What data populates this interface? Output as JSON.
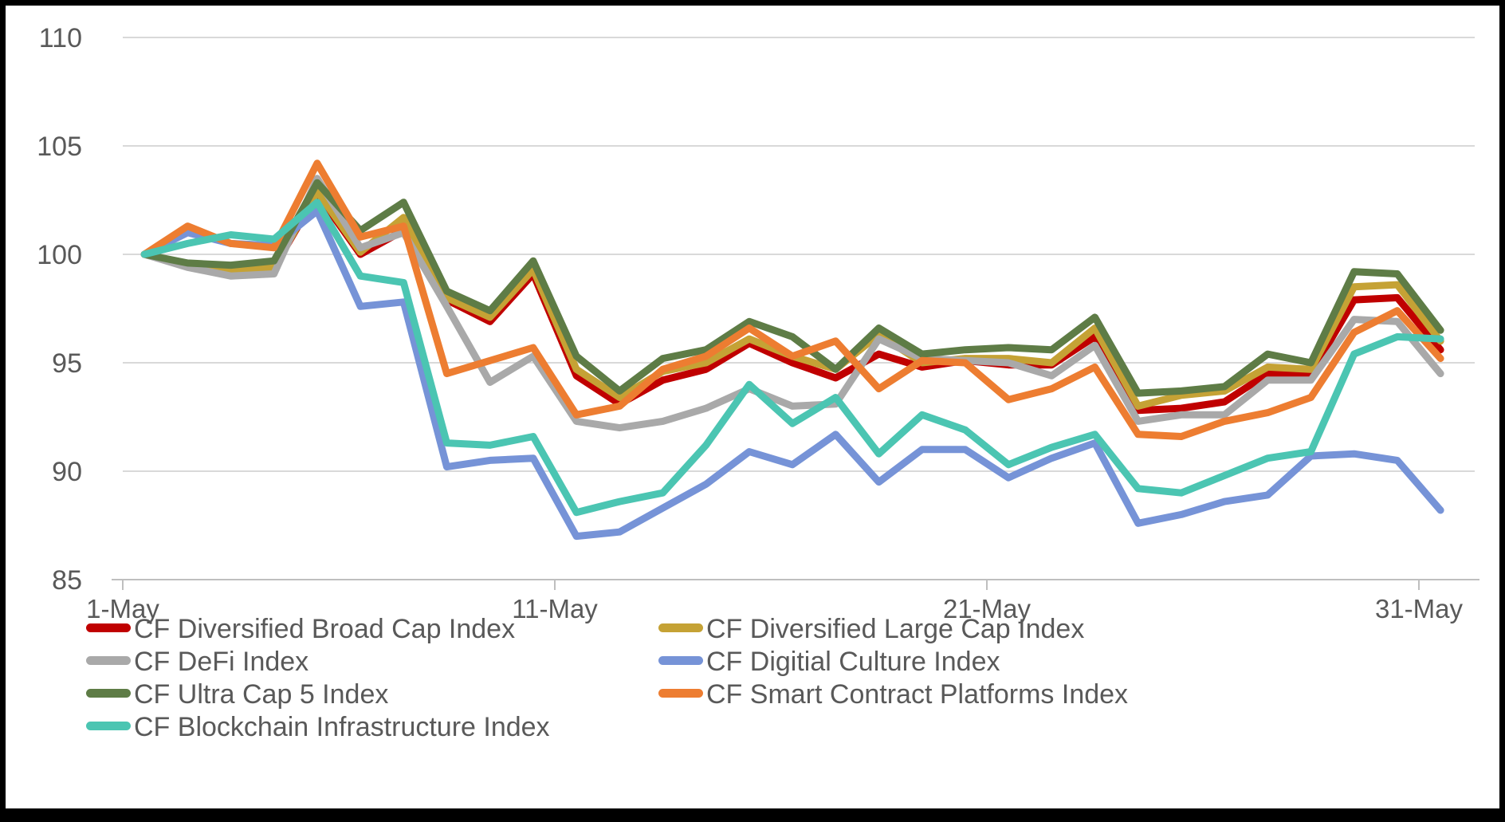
{
  "chart_data": {
    "type": "line",
    "title": "",
    "xlabel": "",
    "ylabel": "",
    "ylim": [
      85,
      110
    ],
    "grid": true,
    "legend_position": "bottom",
    "y_ticks": [
      110,
      105,
      100,
      95,
      90,
      85
    ],
    "x_days": [
      1,
      2,
      3,
      4,
      5,
      6,
      7,
      8,
      9,
      10,
      11,
      12,
      13,
      14,
      15,
      16,
      17,
      18,
      19,
      20,
      21,
      22,
      23,
      24,
      25,
      26,
      27,
      28,
      29,
      30,
      31
    ],
    "x_tick_labels": [
      "1-May",
      "11-May",
      "21-May",
      "31-May"
    ],
    "x_tick_days": [
      1,
      11,
      21,
      31
    ],
    "series": [
      {
        "name": "CF Diversified Broad Cap Index",
        "color": "#C00000",
        "values": [
          100,
          99.5,
          99.3,
          99.4,
          102.8,
          100.0,
          101.1,
          97.9,
          96.9,
          99.1,
          94.4,
          93.1,
          94.2,
          94.7,
          95.9,
          95.0,
          94.3,
          95.4,
          94.8,
          95.1,
          94.9,
          94.9,
          96.2,
          92.8,
          92.9,
          93.2,
          94.5,
          94.5,
          97.9,
          98.0,
          95.6
        ]
      },
      {
        "name": "CF Diversified Large Cap Index",
        "color": "#C5A235",
        "values": [
          100,
          99.5,
          99.3,
          99.4,
          102.9,
          100.1,
          101.7,
          98.0,
          97.1,
          99.3,
          94.7,
          93.4,
          94.6,
          95.0,
          96.1,
          95.3,
          94.7,
          96.3,
          95.0,
          95.2,
          95.2,
          95.0,
          96.6,
          93.0,
          93.5,
          93.7,
          94.8,
          94.7,
          98.5,
          98.6,
          96.0
        ]
      },
      {
        "name": "CF DeFi Index",
        "color": "#A9A9A9",
        "values": [
          100,
          99.4,
          99.0,
          99.1,
          103.5,
          100.3,
          101.0,
          97.6,
          94.1,
          95.3,
          92.3,
          92.0,
          92.3,
          92.9,
          93.8,
          93.0,
          93.1,
          96.1,
          95.2,
          95.1,
          95.0,
          94.4,
          95.8,
          92.3,
          92.6,
          92.6,
          94.2,
          94.2,
          97.0,
          96.9,
          94.5
        ]
      },
      {
        "name": "CF Digitial Culture Index",
        "color": "#7693D7",
        "values": [
          100,
          101.0,
          100.5,
          100.4,
          102.0,
          97.6,
          97.8,
          90.2,
          90.5,
          90.6,
          87.0,
          87.2,
          88.3,
          89.4,
          90.9,
          90.3,
          91.7,
          89.5,
          91.0,
          91.0,
          89.7,
          90.6,
          91.3,
          87.6,
          88.0,
          88.6,
          88.9,
          90.7,
          90.8,
          90.5,
          88.2
        ]
      },
      {
        "name": "CF Ultra Cap 5 Index",
        "color": "#5E7C46",
        "values": [
          100,
          99.6,
          99.5,
          99.7,
          103.3,
          101.1,
          102.4,
          98.3,
          97.4,
          99.7,
          95.3,
          93.7,
          95.2,
          95.6,
          96.9,
          96.2,
          94.7,
          96.6,
          95.4,
          95.6,
          95.7,
          95.6,
          97.1,
          93.6,
          93.7,
          93.9,
          95.4,
          95.0,
          99.2,
          99.1,
          96.5
        ]
      },
      {
        "name": "CF Smart Contract Platforms Index",
        "color": "#ED7D31",
        "values": [
          100,
          101.3,
          100.5,
          100.3,
          104.2,
          100.8,
          101.3,
          94.5,
          95.1,
          95.7,
          92.6,
          93.0,
          94.7,
          95.3,
          96.6,
          95.3,
          96.0,
          93.8,
          95.1,
          95.0,
          93.3,
          93.8,
          94.8,
          91.7,
          91.6,
          92.3,
          92.7,
          93.4,
          96.4,
          97.4,
          95.2
        ]
      },
      {
        "name": "CF Blockchain Infrastructure Index",
        "color": "#4BC5B2",
        "values": [
          100,
          100.5,
          100.9,
          100.7,
          102.4,
          99.0,
          98.7,
          91.3,
          91.2,
          91.6,
          88.1,
          88.6,
          89.0,
          91.2,
          94.0,
          92.2,
          93.4,
          90.8,
          92.6,
          91.9,
          90.3,
          91.1,
          91.7,
          89.2,
          89.0,
          89.8,
          90.6,
          90.9,
          95.4,
          96.2,
          96.1
        ]
      }
    ],
    "legend_columns": [
      [
        0,
        2,
        4,
        6
      ],
      [
        1,
        3,
        5
      ]
    ]
  },
  "style": {
    "grid_color": "#D9D9D9",
    "axis_color": "#BFBFBF",
    "label_color": "#595959",
    "line_width": 9
  }
}
